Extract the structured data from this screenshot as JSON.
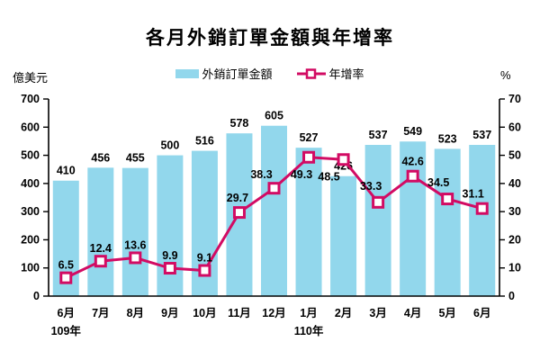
{
  "title": "各月外銷訂單金額與年增率",
  "legend": {
    "bars_label": "外銷訂單金額",
    "line_label": "年增率"
  },
  "colors": {
    "bar": "#92D7EC",
    "line": "#D20B63",
    "marker_fill": "#FFFFFF",
    "text": "#000000",
    "axis": "#000000"
  },
  "chart_data": {
    "type": "bar",
    "subtype": "bar+line combo",
    "title": "各月外銷訂單金額與年增率",
    "categories": [
      "6月",
      "7月",
      "8月",
      "9月",
      "10月",
      "11月",
      "12月",
      "1月",
      "2月",
      "3月",
      "4月",
      "5月",
      "6月"
    ],
    "year_labels": [
      {
        "text": "109年",
        "category_index": 0
      },
      {
        "text": "110年",
        "category_index": 7
      }
    ],
    "series": [
      {
        "name": "外銷訂單金額",
        "type": "bar",
        "axis": "left",
        "values": [
          410,
          456,
          455,
          500,
          516,
          578,
          605,
          527,
          426,
          537,
          549,
          523,
          537
        ]
      },
      {
        "name": "年增率",
        "type": "line",
        "axis": "right",
        "values": [
          6.5,
          12.4,
          13.6,
          9.9,
          9.1,
          29.7,
          38.3,
          49.3,
          48.5,
          33.3,
          42.6,
          34.5,
          31.1
        ]
      }
    ],
    "left_axis": {
      "label": "億美元",
      "min": 0,
      "max": 700,
      "step": 100,
      "ticks": [
        0,
        100,
        200,
        300,
        400,
        500,
        600,
        700
      ]
    },
    "right_axis": {
      "label": "%",
      "min": 0,
      "max": 70,
      "step": 10,
      "ticks": [
        0,
        10,
        20,
        30,
        40,
        50,
        60,
        70
      ]
    },
    "grid": false,
    "legend_position": "top",
    "data_labels": true
  }
}
